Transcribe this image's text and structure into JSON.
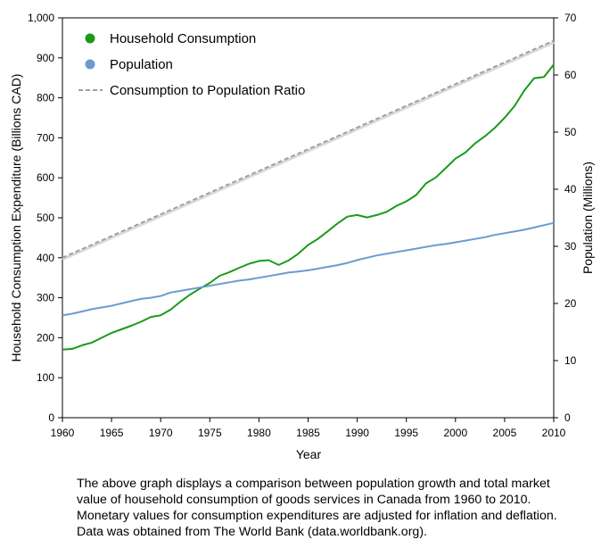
{
  "chart_data": {
    "type": "line",
    "title": "",
    "xlabel": "Year",
    "ylabel_left": "Household Consumption Expenditure (Billions CAD)",
    "ylabel_right": "Population (Millions)",
    "xlim": [
      1960,
      2010
    ],
    "ylim_left": [
      0,
      1000
    ],
    "ylim_right": [
      0,
      70
    ],
    "x_ticks": [
      "1960",
      "1965",
      "1970",
      "1975",
      "1980",
      "1985",
      "1990",
      "1995",
      "2000",
      "2005",
      "2010"
    ],
    "y_left_ticks": [
      "0",
      "100",
      "200",
      "300",
      "400",
      "500",
      "600",
      "700",
      "800",
      "900",
      "1,000"
    ],
    "y_right_ticks": [
      "0",
      "10",
      "20",
      "30",
      "40",
      "50",
      "60",
      "70"
    ],
    "grid": false,
    "legend_position": "top-left",
    "x": [
      1960,
      1961,
      1962,
      1963,
      1964,
      1965,
      1966,
      1967,
      1968,
      1969,
      1970,
      1971,
      1972,
      1973,
      1974,
      1975,
      1976,
      1977,
      1978,
      1979,
      1980,
      1981,
      1982,
      1983,
      1984,
      1985,
      1986,
      1987,
      1988,
      1989,
      1990,
      1991,
      1992,
      1993,
      1994,
      1995,
      1996,
      1997,
      1998,
      1999,
      2000,
      2001,
      2002,
      2003,
      2004,
      2005,
      2006,
      2007,
      2008,
      2009,
      2010
    ],
    "series": [
      {
        "name": "Household Consumption",
        "axis": "left",
        "color": "#1a9a1a",
        "values": [
          170,
          172,
          181,
          188,
          200,
          212,
          221,
          230,
          240,
          252,
          256,
          270,
          290,
          308,
          323,
          337,
          355,
          364,
          375,
          385,
          392,
          394,
          382,
          393,
          410,
          432,
          447,
          466,
          486,
          503,
          507,
          501,
          507,
          515,
          530,
          541,
          557,
          586,
          601,
          624,
          648,
          663,
          686,
          704,
          725,
          750,
          779,
          818,
          849,
          852,
          883
        ]
      },
      {
        "name": "Population",
        "axis": "right",
        "color": "#6b9bd1",
        "values": [
          17.9,
          18.2,
          18.6,
          19.0,
          19.3,
          19.6,
          20.0,
          20.4,
          20.8,
          21.0,
          21.3,
          21.9,
          22.2,
          22.5,
          22.8,
          23.1,
          23.4,
          23.7,
          24.0,
          24.2,
          24.5,
          24.8,
          25.1,
          25.4,
          25.6,
          25.8,
          26.1,
          26.4,
          26.7,
          27.1,
          27.6,
          28.0,
          28.4,
          28.7,
          29.0,
          29.3,
          29.6,
          29.9,
          30.2,
          30.4,
          30.7,
          31.0,
          31.3,
          31.6,
          32.0,
          32.3,
          32.6,
          32.9,
          33.3,
          33.7,
          34.1
        ]
      },
      {
        "name": "Consumption to Population Ratio",
        "axis": "right",
        "color": "#a0a0a0",
        "style": "dashed",
        "x_range": [
          1960,
          2010
        ],
        "values_at_ends": [
          28,
          66
        ]
      }
    ]
  },
  "caption": "The above graph displays a comparison between population growth and total market value of household consumption of goods services in Canada from 1960 to 2010.  Monetary values for consumption expenditures are adjusted for inflation and deflation.  Data was obtained from The World Bank (data.worldbank.org)."
}
